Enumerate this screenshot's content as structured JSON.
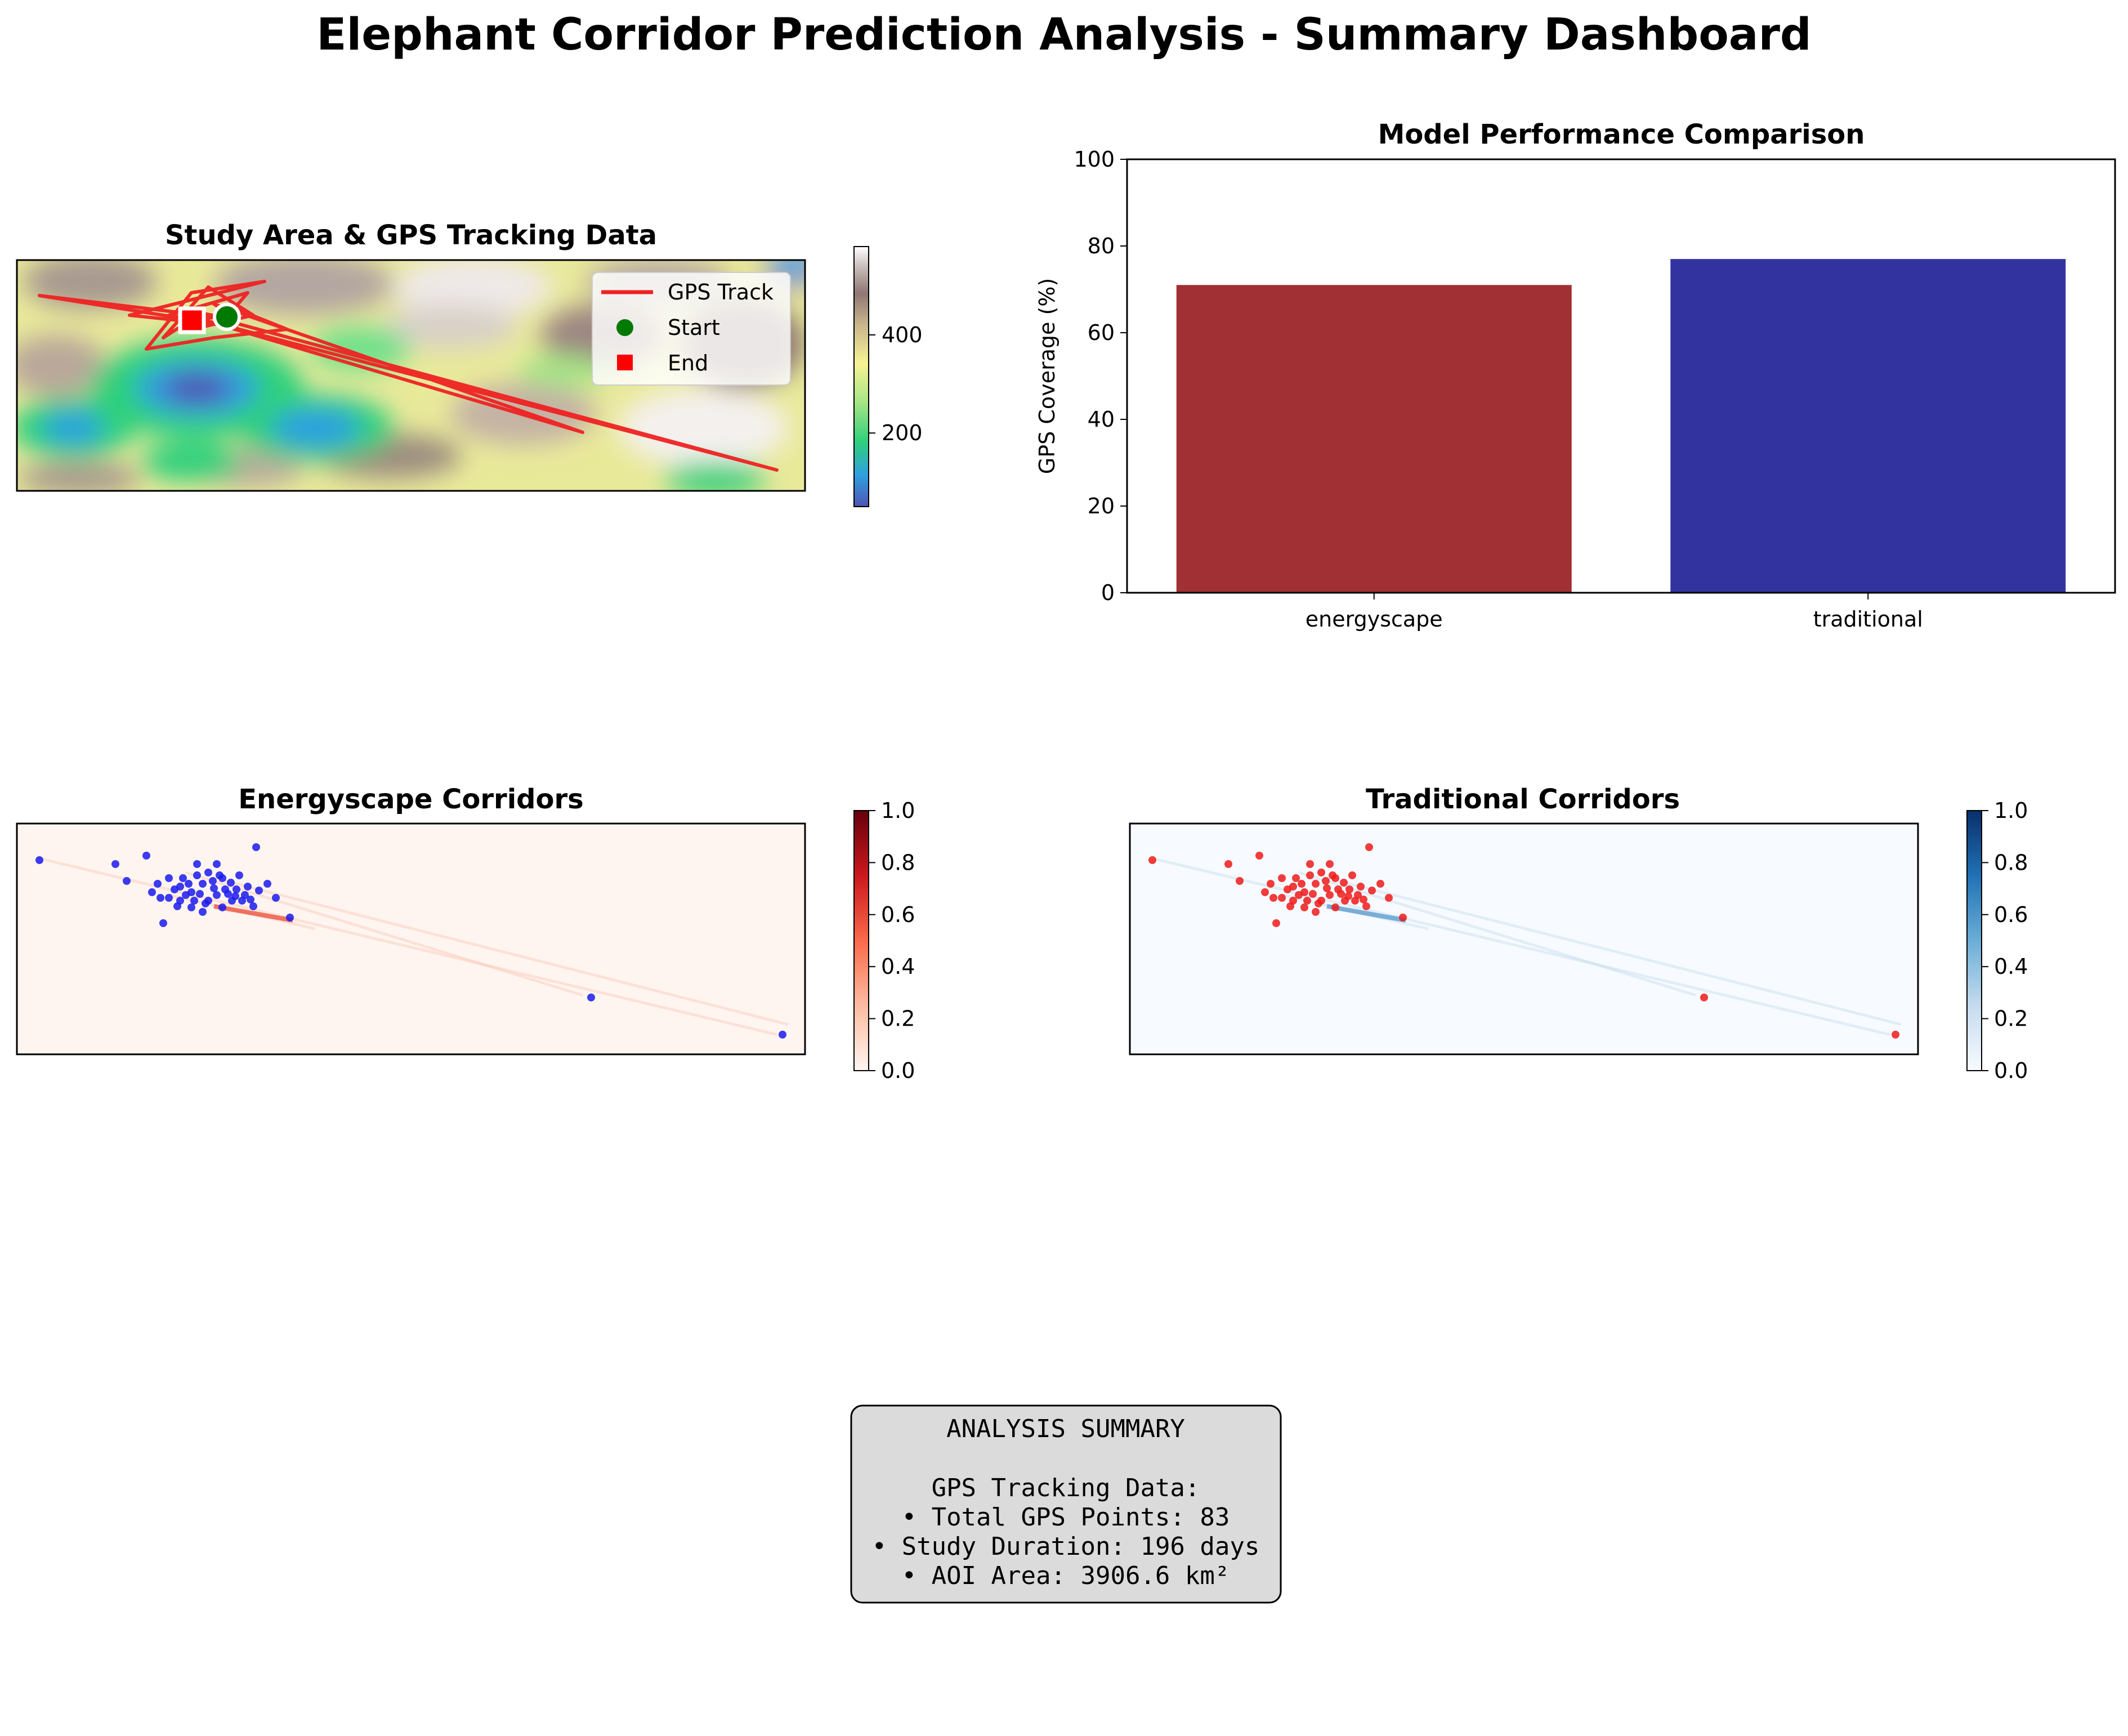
{
  "page_title": "Elephant Corridor Prediction Analysis - Summary Dashboard",
  "colors": {
    "track": "#ee2222",
    "start": "#007a00",
    "end": "#ff0000",
    "energyscape_bar": "#a03033",
    "traditional_bar": "#3333a0",
    "energyscape_points": "#1a1aee",
    "traditional_points": "#ee1a1a",
    "summary_box_bg": "#dbdbdb"
  },
  "chart_data": [
    {
      "type": "heatmap",
      "title": "Study Area & GPS Tracking Data",
      "colormap": "terrain",
      "colorbar": {
        "ticks": [
          200,
          400
        ],
        "range": [
          50,
          580
        ]
      },
      "legend": {
        "placement": "top-right",
        "entries": [
          "GPS Track",
          "Start",
          "End"
        ]
      },
      "grid": false,
      "xticks": "none",
      "yticks": "none"
    },
    {
      "type": "bar",
      "title": "Model Performance Comparison",
      "categories": [
        "energyscape",
        "traditional"
      ],
      "values": [
        71,
        77
      ],
      "ylabel": "GPS Coverage (%)",
      "ylim": [
        0,
        100
      ],
      "yticks": [
        "0",
        "20",
        "40",
        "60",
        "80",
        "100"
      ],
      "grid": false
    },
    {
      "type": "heatmap",
      "title": "Energyscape Corridors",
      "colormap": "Reds",
      "colorbar": {
        "ticks": [
          "0.0",
          "0.2",
          "0.4",
          "0.6",
          "0.8",
          "1.0"
        ],
        "range": [
          0,
          1
        ]
      },
      "grid": false
    },
    {
      "type": "heatmap",
      "title": "Traditional Corridors",
      "colormap": "Blues",
      "colorbar": {
        "ticks": [
          "0.0",
          "0.2",
          "0.4",
          "0.6",
          "0.8",
          "1.0"
        ],
        "range": [
          0,
          1
        ]
      },
      "grid": false
    }
  ],
  "summary": {
    "heading": "ANALYSIS SUMMARY",
    "section": "GPS Tracking Data:",
    "items": [
      "• Total GPS Points: 83",
      "• Study Duration: 196 days",
      "• AOI Area: 3906.6 km²"
    ]
  }
}
